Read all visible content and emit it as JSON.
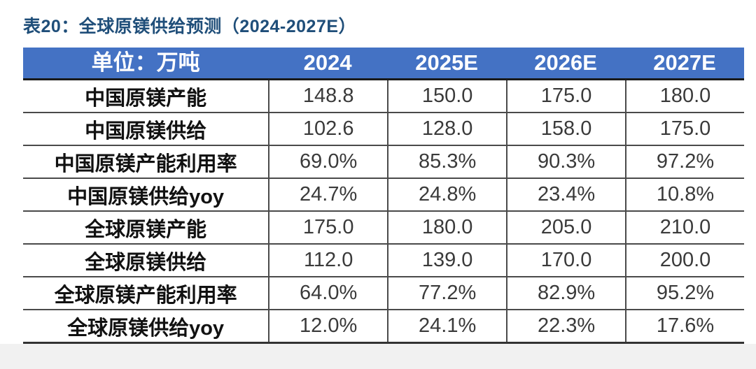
{
  "title": "表20：全球原镁供给预测（2024-2027E）",
  "colors": {
    "header_bg": "#4472C4",
    "header_text": "#ffffff",
    "title_text": "#1F4E79",
    "grid_line": "#4a4a4a",
    "label_text": "#111111",
    "value_text": "#3a3a3a",
    "bottom_strip": "#f1f1f1"
  },
  "table": {
    "header": [
      "单位：万吨",
      "2024",
      "2025E",
      "2026E",
      "2027E"
    ],
    "rows": [
      {
        "label": "中国原镁产能",
        "values": [
          "148.8",
          "150.0",
          "175.0",
          "180.0"
        ]
      },
      {
        "label": "中国原镁供给",
        "values": [
          "102.6",
          "128.0",
          "158.0",
          "175.0"
        ]
      },
      {
        "label": "中国原镁产能利用率",
        "values": [
          "69.0%",
          "85.3%",
          "90.3%",
          "97.2%"
        ]
      },
      {
        "label": "中国原镁供给yoy",
        "values": [
          "24.7%",
          "24.8%",
          "23.4%",
          "10.8%"
        ]
      },
      {
        "label": "全球原镁产能",
        "values": [
          "175.0",
          "180.0",
          "205.0",
          "210.0"
        ]
      },
      {
        "label": "全球原镁供给",
        "values": [
          "112.0",
          "139.0",
          "170.0",
          "200.0"
        ]
      },
      {
        "label": "全球原镁产能利用率",
        "values": [
          "64.0%",
          "77.2%",
          "82.9%",
          "95.2%"
        ]
      },
      {
        "label": "全球原镁供给yoy",
        "values": [
          "12.0%",
          "24.1%",
          "22.3%",
          "17.6%"
        ]
      }
    ]
  },
  "chart_data": {
    "type": "table",
    "title": "表20：全球原镁供给预测（2024-2027E）",
    "unit": "万吨",
    "columns": [
      "单位：万吨",
      "2024",
      "2025E",
      "2026E",
      "2027E"
    ],
    "rows": [
      {
        "label": "中国原镁产能",
        "values": [
          148.8,
          150.0,
          175.0,
          180.0
        ]
      },
      {
        "label": "中国原镁供给",
        "values": [
          102.6,
          128.0,
          158.0,
          175.0
        ]
      },
      {
        "label": "中国原镁产能利用率",
        "values": [
          "69.0%",
          "85.3%",
          "90.3%",
          "97.2%"
        ]
      },
      {
        "label": "中国原镁供给yoy",
        "values": [
          "24.7%",
          "24.8%",
          "23.4%",
          "10.8%"
        ]
      },
      {
        "label": "全球原镁产能",
        "values": [
          175.0,
          180.0,
          205.0,
          210.0
        ]
      },
      {
        "label": "全球原镁供给",
        "values": [
          112.0,
          139.0,
          170.0,
          200.0
        ]
      },
      {
        "label": "全球原镁产能利用率",
        "values": [
          "64.0%",
          "77.2%",
          "82.9%",
          "95.2%"
        ]
      },
      {
        "label": "全球原镁供给yoy",
        "values": [
          "12.0%",
          "24.1%",
          "22.3%",
          "17.6%"
        ]
      }
    ]
  }
}
